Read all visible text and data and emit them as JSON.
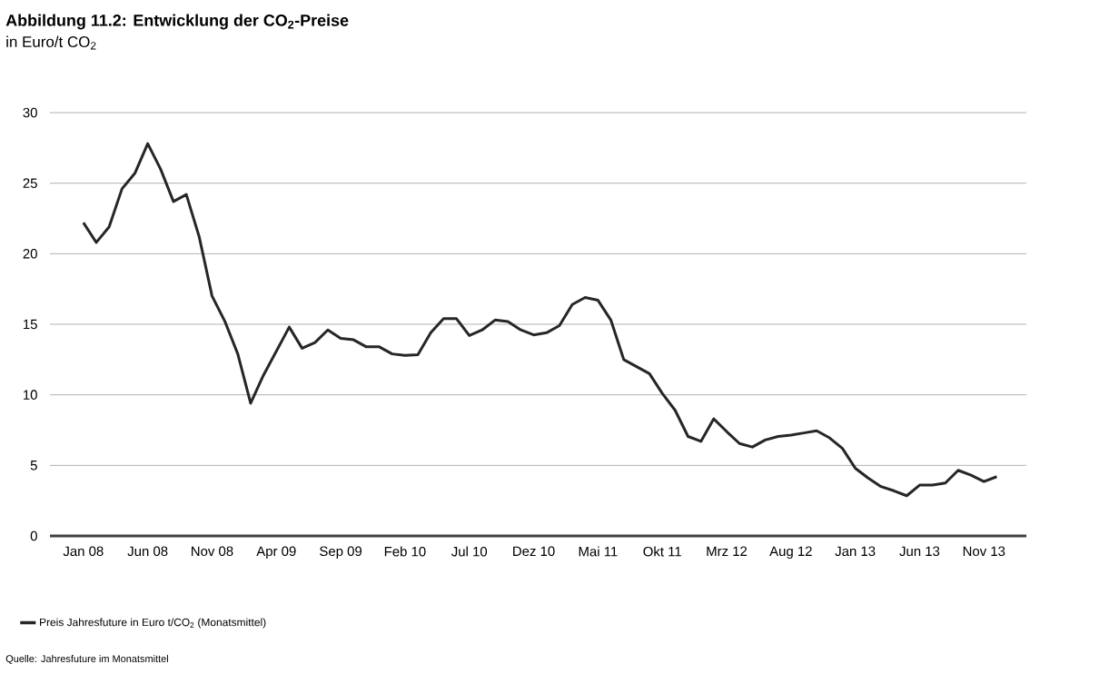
{
  "chart_data": {
    "type": "line",
    "title": "Abbildung 11.2: Entwicklung der CO$_{2}$-Preise",
    "ylabel": "in Euro/t CO$_{2}$",
    "categories": [
      "Jan 08",
      null,
      null,
      null,
      null,
      "Jun 08",
      null,
      null,
      null,
      null,
      "Nov 08",
      null,
      null,
      null,
      null,
      "Apr 09",
      null,
      null,
      null,
      null,
      "Sep 09",
      null,
      null,
      null,
      null,
      "Feb 10",
      null,
      null,
      null,
      null,
      "Jul 10",
      null,
      null,
      null,
      null,
      "Dez 10",
      null,
      null,
      null,
      null,
      "Mai 11",
      null,
      null,
      null,
      null,
      "Okt 11",
      null,
      null,
      null,
      null,
      "Mrz 12",
      null,
      null,
      null,
      null,
      "Aug 12",
      null,
      null,
      null,
      null,
      "Jan 13",
      null,
      null,
      null,
      null,
      "Jun 13",
      null,
      null,
      null,
      null,
      "Nov 13",
      null
    ],
    "series": [
      {
        "name": "Preis Jahresfuture in Euro t/CO$_{2}$ (Monatsmittel)",
        "color": "#262626",
        "values": [
          22.2,
          20.8,
          21.9,
          24.6,
          25.7,
          27.8,
          26.0,
          23.7,
          24.2,
          21.2,
          17.0,
          15.2,
          12.9,
          9.4,
          11.4,
          13.1,
          14.8,
          13.3,
          13.7,
          14.6,
          14.0,
          13.9,
          13.4,
          13.4,
          12.9,
          12.8,
          12.85,
          14.4,
          15.4,
          15.4,
          14.2,
          14.6,
          15.3,
          15.2,
          14.6,
          14.25,
          14.4,
          14.9,
          16.4,
          16.9,
          16.7,
          15.3,
          12.5,
          12.0,
          11.5,
          10.1,
          8.9,
          7.05,
          6.7,
          8.3,
          7.4,
          6.55,
          6.3,
          6.8,
          7.05,
          7.15,
          7.3,
          7.45,
          6.95,
          6.2,
          4.8,
          4.1,
          3.5,
          3.2,
          2.85,
          3.6,
          3.6,
          3.75,
          4.65,
          4.3,
          3.85,
          4.2
        ]
      }
    ],
    "ylim": [
      0,
      30
    ],
    "yticks": [
      0,
      5,
      10,
      15,
      20,
      25,
      30
    ],
    "grid": "y",
    "legend": "bottom",
    "marker": "none",
    "line_style": "solid",
    "annotations": [
      "Quelle: Jahresfuture im Monatsmittel"
    ]
  }
}
